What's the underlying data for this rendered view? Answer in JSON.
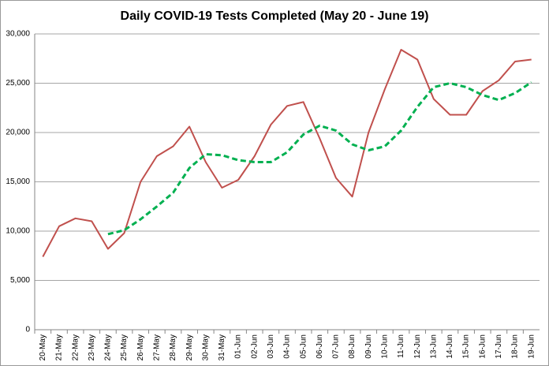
{
  "chart_data": {
    "type": "line",
    "title": "Daily COVID-19 Tests Completed (May 20 - June 19)",
    "categories": [
      "20-May",
      "21-May",
      "22-May",
      "23-May",
      "24-May",
      "25-May",
      "26-May",
      "27-May",
      "28-May",
      "29-May",
      "30-May",
      "31-May",
      "01-Jun",
      "02-Jun",
      "03-Jun",
      "04-Jun",
      "05-Jun",
      "06-Jun",
      "07-Jun",
      "08-Jun",
      "09-Jun",
      "10-Jun",
      "11-Jun",
      "12-Jun",
      "13-Jun",
      "14-Jun",
      "15-Jun",
      "16-Jun",
      "17-Jun",
      "18-Jun",
      "19-Jun"
    ],
    "series": [
      {
        "color": "#c0504d",
        "style": "solid",
        "values": [
          7400,
          10500,
          11300,
          11000,
          8200,
          9800,
          15000,
          17600,
          18600,
          20600,
          17000,
          14400,
          15200,
          17600,
          20800,
          22700,
          23100,
          19400,
          15400,
          13500,
          20000,
          24400,
          28400,
          27400,
          23400,
          21800,
          21800,
          24200,
          25300,
          27200,
          27400
        ]
      },
      {
        "color": "#00b050",
        "style": "dashed",
        "values": [
          null,
          null,
          null,
          null,
          9700,
          10100,
          11200,
          12500,
          13900,
          16400,
          17800,
          17700,
          17200,
          17000,
          17000,
          18000,
          19800,
          20700,
          20200,
          18800,
          18200,
          18600,
          20200,
          22600,
          24600,
          25000,
          24600,
          23800,
          23300,
          24000,
          25100
        ]
      }
    ],
    "ylim": [
      0,
      30000
    ],
    "yticks": [
      0,
      {
        "value": 5000,
        "label": "5,000"
      },
      {
        "value": 10000,
        "label": "10,000"
      },
      {
        "value": 15000,
        "label": "15,000"
      },
      {
        "value": 20000,
        "label": "20,000"
      },
      {
        "value": 25000,
        "label": "25,000"
      },
      {
        "value": 30000,
        "label": "30,000"
      }
    ],
    "grid": true
  }
}
